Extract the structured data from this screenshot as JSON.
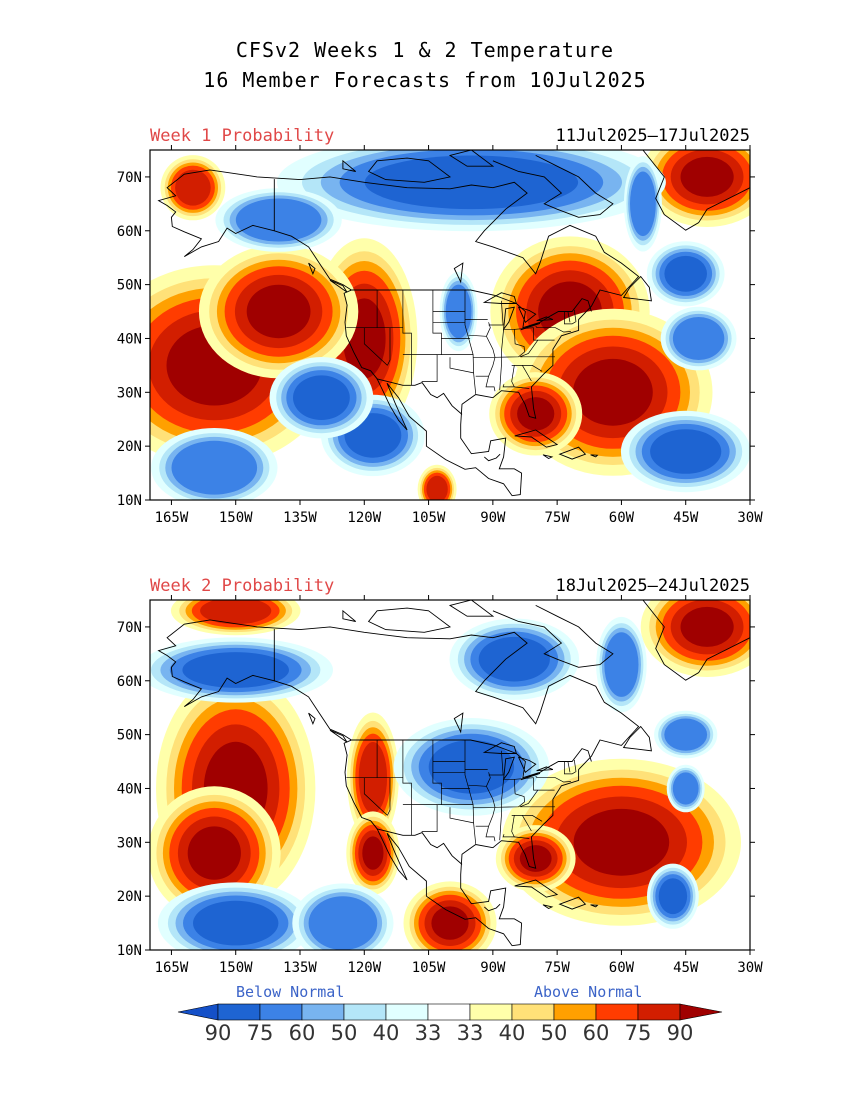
{
  "title_line1": "CFSv2 Weeks 1 & 2 Temperature",
  "title_line2": "16 Member Forecasts from 10Jul2025",
  "panels": [
    {
      "label": "Week 1 Probability",
      "dates": "11Jul2025–17Jul2025",
      "blobs": [
        {
          "cat": "above",
          "lon": -120,
          "lat": 40,
          "rx": 8,
          "ry": 12,
          "level": 90
        },
        {
          "cat": "above",
          "lon": -155,
          "lat": 35,
          "rx": 18,
          "ry": 12,
          "level": 90
        },
        {
          "cat": "above",
          "lon": -140,
          "lat": 45,
          "rx": 12,
          "ry": 8,
          "level": 90
        },
        {
          "cat": "above",
          "lon": -160,
          "lat": 68,
          "rx": 5,
          "ry": 4,
          "level": 75
        },
        {
          "cat": "above",
          "lon": -72,
          "lat": 45,
          "rx": 12,
          "ry": 9,
          "level": 90
        },
        {
          "cat": "above",
          "lon": -62,
          "lat": 30,
          "rx": 15,
          "ry": 10,
          "level": 90
        },
        {
          "cat": "above",
          "lon": -80,
          "lat": 26,
          "rx": 7,
          "ry": 5,
          "level": 90
        },
        {
          "cat": "above",
          "lon": -40,
          "lat": 70,
          "rx": 10,
          "ry": 6,
          "level": 90
        },
        {
          "cat": "above",
          "lon": -103,
          "lat": 12,
          "rx": 3,
          "ry": 3,
          "level": 75
        },
        {
          "cat": "below",
          "lon": -95,
          "lat": 69,
          "rx": 30,
          "ry": 6,
          "level": 75
        },
        {
          "cat": "below",
          "lon": -118,
          "lat": 22,
          "rx": 8,
          "ry": 5,
          "level": 75
        },
        {
          "cat": "below",
          "lon": -130,
          "lat": 29,
          "rx": 8,
          "ry": 5,
          "level": 75
        },
        {
          "cat": "below",
          "lon": -155,
          "lat": 16,
          "rx": 10,
          "ry": 5,
          "level": 60
        },
        {
          "cat": "below",
          "lon": -45,
          "lat": 19,
          "rx": 10,
          "ry": 5,
          "level": 75
        },
        {
          "cat": "below",
          "lon": -45,
          "lat": 52,
          "rx": 6,
          "ry": 4,
          "level": 75
        },
        {
          "cat": "below",
          "lon": -42,
          "lat": 40,
          "rx": 6,
          "ry": 4,
          "level": 60
        },
        {
          "cat": "below",
          "lon": -98,
          "lat": 45,
          "rx": 3,
          "ry": 5,
          "level": 60
        },
        {
          "cat": "below",
          "lon": -140,
          "lat": 62,
          "rx": 10,
          "ry": 4,
          "level": 60
        },
        {
          "cat": "below",
          "lon": -55,
          "lat": 65,
          "rx": 3,
          "ry": 6,
          "level": 60
        }
      ]
    },
    {
      "label": "Week 2 Probability",
      "dates": "18Jul2025–24Jul2025",
      "blobs": [
        {
          "cat": "above",
          "lon": -150,
          "lat": 40,
          "rx": 12,
          "ry": 14,
          "level": 90
        },
        {
          "cat": "above",
          "lon": -155,
          "lat": 28,
          "rx": 10,
          "ry": 8,
          "level": 90
        },
        {
          "cat": "above",
          "lon": -60,
          "lat": 30,
          "rx": 18,
          "ry": 10,
          "level": 90
        },
        {
          "cat": "above",
          "lon": -118,
          "lat": 42,
          "rx": 4,
          "ry": 8,
          "level": 75
        },
        {
          "cat": "above",
          "lon": -118,
          "lat": 28,
          "rx": 4,
          "ry": 5,
          "level": 90
        },
        {
          "cat": "above",
          "lon": -100,
          "lat": 15,
          "rx": 7,
          "ry": 5,
          "level": 90
        },
        {
          "cat": "above",
          "lon": -40,
          "lat": 70,
          "rx": 10,
          "ry": 6,
          "level": 90
        },
        {
          "cat": "above",
          "lon": -150,
          "lat": 73,
          "rx": 10,
          "ry": 3,
          "level": 75
        },
        {
          "cat": "above",
          "lon": -80,
          "lat": 27,
          "rx": 6,
          "ry": 4,
          "level": 90
        },
        {
          "cat": "below",
          "lon": -95,
          "lat": 44,
          "rx": 12,
          "ry": 6,
          "level": 75
        },
        {
          "cat": "below",
          "lon": -85,
          "lat": 64,
          "rx": 10,
          "ry": 5,
          "level": 75
        },
        {
          "cat": "below",
          "lon": -150,
          "lat": 62,
          "rx": 15,
          "ry": 4,
          "level": 75
        },
        {
          "cat": "below",
          "lon": -150,
          "lat": 15,
          "rx": 12,
          "ry": 5,
          "level": 75
        },
        {
          "cat": "below",
          "lon": -125,
          "lat": 15,
          "rx": 8,
          "ry": 5,
          "level": 60
        },
        {
          "cat": "below",
          "lon": -60,
          "lat": 63,
          "rx": 4,
          "ry": 6,
          "level": 60
        },
        {
          "cat": "below",
          "lon": -48,
          "lat": 20,
          "rx": 4,
          "ry": 4,
          "level": 75
        },
        {
          "cat": "below",
          "lon": -45,
          "lat": 50,
          "rx": 5,
          "ry": 3,
          "level": 60
        },
        {
          "cat": "below",
          "lon": -45,
          "lat": 40,
          "rx": 3,
          "ry": 3,
          "level": 60
        }
      ]
    }
  ],
  "lon_ticks": [
    "165W",
    "150W",
    "135W",
    "120W",
    "105W",
    "90W",
    "75W",
    "60W",
    "45W",
    "30W"
  ],
  "lat_ticks": [
    "70N",
    "60N",
    "50N",
    "40N",
    "30N",
    "20N",
    "10N"
  ],
  "lon_range": [
    -170,
    -30
  ],
  "lat_range": [
    10,
    75
  ],
  "legend": {
    "below_label": "Below Normal",
    "above_label": "Above Normal",
    "values": [
      "90",
      "75",
      "60",
      "50",
      "40",
      "33",
      "33",
      "40",
      "50",
      "60",
      "75",
      "90"
    ],
    "below_colors": [
      "#1e64d2",
      "#3c82e6",
      "#78b4f0",
      "#b4e6f8",
      "#e1ffff"
    ],
    "above_colors": [
      "#ffffaa",
      "#ffe178",
      "#ffa000",
      "#ff3c00",
      "#d21e00"
    ],
    "end_below": "#1450c8",
    "end_above": "#a00000"
  },
  "colors": {
    "label_red": "#e04848",
    "label_blue": "#3c64c8",
    "below": {
      "33": "#e1ffff",
      "40": "#b4e6f8",
      "50": "#78b4f0",
      "60": "#3c82e6",
      "75": "#1e64d2",
      "90": "#1450c8"
    },
    "above": {
      "33": "#ffffaa",
      "40": "#ffe178",
      "50": "#ffa000",
      "60": "#ff3c00",
      "75": "#d21e00",
      "90": "#a00000"
    }
  }
}
